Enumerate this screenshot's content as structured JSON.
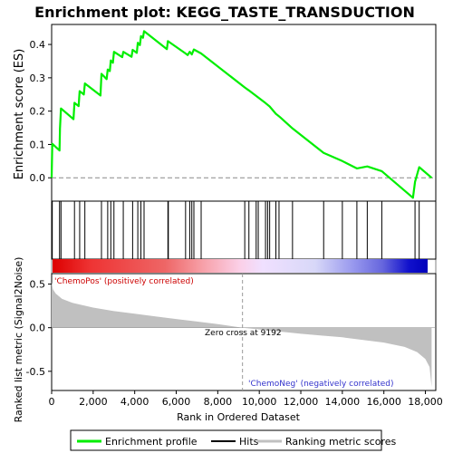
{
  "title": "Enrichment plot: KEGG_TASTE_TRANSDUCTION",
  "colors": {
    "enrichment_line": "#00ee00",
    "hits": "#000000",
    "metric_fill": "#c0c0c0",
    "pos_label": "#cc0000",
    "neg_label": "#3333cc",
    "zero_marker": "#999999"
  },
  "chart_data": [
    {
      "type": "line",
      "panel": "enrichment-score",
      "ylabel": "Enrichment score (ES)",
      "xlim": [
        0,
        18500
      ],
      "ylim": [
        -0.07,
        0.46
      ],
      "yticks": [
        0.0,
        0.1,
        0.2,
        0.3,
        0.4
      ],
      "ytick_labels": [
        "0.0",
        "0.1",
        "0.2",
        "0.3",
        "0.4"
      ],
      "series": [
        {
          "name": "Enrichment profile",
          "points": [
            [
              0,
              0.0
            ],
            [
              30,
              0.102
            ],
            [
              380,
              0.082
            ],
            [
              400,
              0.148
            ],
            [
              450,
              0.208
            ],
            [
              1050,
              0.176
            ],
            [
              1100,
              0.225
            ],
            [
              1300,
              0.215
            ],
            [
              1350,
              0.26
            ],
            [
              1550,
              0.25
            ],
            [
              1600,
              0.283
            ],
            [
              2350,
              0.247
            ],
            [
              2400,
              0.312
            ],
            [
              2650,
              0.296
            ],
            [
              2700,
              0.325
            ],
            [
              2800,
              0.32
            ],
            [
              2850,
              0.352
            ],
            [
              2950,
              0.345
            ],
            [
              3000,
              0.378
            ],
            [
              3400,
              0.362
            ],
            [
              3450,
              0.378
            ],
            [
              3850,
              0.363
            ],
            [
              3900,
              0.384
            ],
            [
              4100,
              0.375
            ],
            [
              4150,
              0.405
            ],
            [
              4250,
              0.398
            ],
            [
              4300,
              0.425
            ],
            [
              4400,
              0.42
            ],
            [
              4450,
              0.44
            ],
            [
              5550,
              0.386
            ],
            [
              5600,
              0.41
            ],
            [
              6450,
              0.373
            ],
            [
              6550,
              0.368
            ],
            [
              6650,
              0.378
            ],
            [
              6750,
              0.37
            ],
            [
              6850,
              0.385
            ],
            [
              7200,
              0.373
            ],
            [
              9300,
              0.271
            ],
            [
              9500,
              0.262
            ],
            [
              9800,
              0.248
            ],
            [
              9900,
              0.243
            ],
            [
              10300,
              0.224
            ],
            [
              10500,
              0.214
            ],
            [
              10800,
              0.192
            ],
            [
              11000,
              0.182
            ],
            [
              11600,
              0.148
            ],
            [
              13100,
              0.075
            ],
            [
              14000,
              0.05
            ],
            [
              14700,
              0.028
            ],
            [
              15200,
              0.034
            ],
            [
              15900,
              0.02
            ],
            [
              17400,
              -0.06
            ],
            [
              17500,
              -0.012
            ],
            [
              17700,
              0.032
            ],
            [
              18300,
              0.0
            ]
          ]
        }
      ]
    },
    {
      "type": "scatter",
      "panel": "hits",
      "series": [
        {
          "name": "Hits",
          "x": [
            30,
            380,
            450,
            1100,
            1350,
            1600,
            2400,
            2700,
            2850,
            3000,
            3450,
            3900,
            4150,
            4300,
            4450,
            5600,
            5620,
            6450,
            6650,
            6750,
            6850,
            7200,
            9300,
            9500,
            9850,
            9950,
            10300,
            10400,
            10500,
            10800,
            10950,
            11600,
            13100,
            14000,
            14700,
            15200,
            15900,
            17500,
            17700
          ]
        }
      ]
    },
    {
      "type": "area",
      "panel": "ranked-metric",
      "xlabel": "Rank in Ordered Dataset",
      "ylabel": "Ranked list metric (Signal2Noise)",
      "xlim": [
        0,
        18500
      ],
      "ylim": [
        -0.72,
        0.62
      ],
      "xticks": [
        0,
        2000,
        4000,
        6000,
        8000,
        10000,
        12000,
        14000,
        16000,
        18000
      ],
      "xtick_labels": [
        "0",
        "2,000",
        "4,000",
        "6,000",
        "8,000",
        "10,000",
        "12,000",
        "14,000",
        "16,000",
        "18,000"
      ],
      "yticks": [
        -0.5,
        0.0,
        0.5
      ],
      "ytick_labels": [
        "-0.5",
        "0.0",
        "0.5"
      ],
      "zero_cross_label": "Zero cross at 9192",
      "zero_cross": 9192,
      "pos_label": "'ChemoPos' (positively correlated)",
      "neg_label": "'ChemoNeg' (negatively correlated)",
      "points": [
        [
          0,
          0.52
        ],
        [
          60,
          0.44
        ],
        [
          200,
          0.39
        ],
        [
          500,
          0.33
        ],
        [
          1000,
          0.285
        ],
        [
          2000,
          0.23
        ],
        [
          3000,
          0.19
        ],
        [
          4000,
          0.16
        ],
        [
          5000,
          0.13
        ],
        [
          6000,
          0.1
        ],
        [
          7000,
          0.07
        ],
        [
          8000,
          0.04
        ],
        [
          9192,
          0.0
        ],
        [
          10000,
          -0.02
        ],
        [
          11000,
          -0.045
        ],
        [
          12000,
          -0.07
        ],
        [
          13000,
          -0.09
        ],
        [
          14000,
          -0.11
        ],
        [
          15000,
          -0.14
        ],
        [
          16000,
          -0.17
        ],
        [
          17000,
          -0.22
        ],
        [
          17600,
          -0.28
        ],
        [
          18000,
          -0.36
        ],
        [
          18200,
          -0.45
        ],
        [
          18300,
          -0.68
        ]
      ]
    }
  ],
  "legend": {
    "items": [
      {
        "label": "Enrichment profile",
        "color": "#00ee00"
      },
      {
        "label": "Hits",
        "color": "#000000"
      },
      {
        "label": "Ranking metric scores",
        "color": "#c0c0c0"
      }
    ]
  }
}
